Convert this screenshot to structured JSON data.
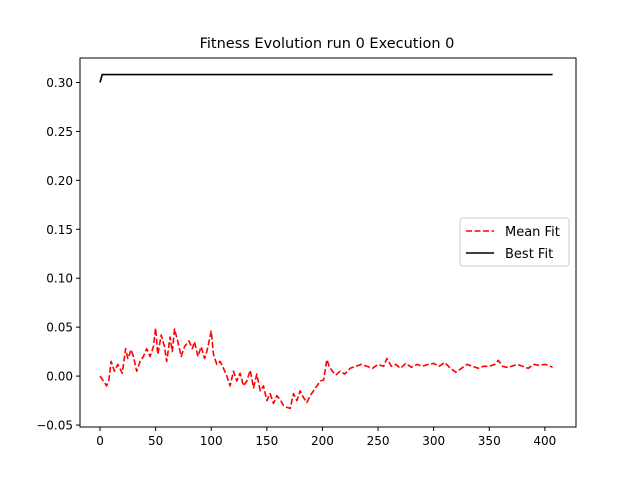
{
  "chart_data": {
    "type": "line",
    "title": "Fitness Evolution run 0 Execution 0",
    "xlabel": "",
    "ylabel": "",
    "xlim": [
      -18,
      428
    ],
    "ylim": [
      -0.052,
      0.325
    ],
    "xticks": [
      0,
      50,
      100,
      150,
      200,
      250,
      300,
      350,
      400
    ],
    "yticks": [
      -0.05,
      0.0,
      0.05,
      0.1,
      0.15,
      0.2,
      0.25,
      0.3
    ],
    "xtick_labels": [
      "0",
      "50",
      "100",
      "150",
      "200",
      "250",
      "300",
      "350",
      "400"
    ],
    "ytick_labels": [
      "−0.05",
      "0.00",
      "0.05",
      "0.10",
      "0.15",
      "0.20",
      "0.25",
      "0.30"
    ],
    "grid": false,
    "legend_position": "center-right",
    "series": [
      {
        "name": "Mean Fit",
        "color": "#ff0000",
        "style": "dashed",
        "x": [
          0,
          3,
          6,
          8,
          10,
          13,
          16,
          20,
          23,
          25,
          28,
          30,
          33,
          36,
          39,
          42,
          45,
          48,
          50,
          52,
          55,
          58,
          60,
          63,
          65,
          67,
          70,
          73,
          76,
          80,
          83,
          85,
          88,
          91,
          94,
          96,
          98,
          100,
          102,
          105,
          108,
          111,
          114,
          117,
          120,
          123,
          126,
          129,
          132,
          135,
          138,
          141,
          144,
          147,
          150,
          153,
          156,
          159,
          162,
          165,
          168,
          171,
          174,
          177,
          180,
          183,
          186,
          189,
          192,
          195,
          198,
          201,
          204,
          206,
          209,
          212,
          216,
          220,
          225,
          230,
          235,
          240,
          245,
          250,
          255,
          258,
          262,
          266,
          270,
          275,
          280,
          285,
          290,
          295,
          300,
          305,
          310,
          315,
          320,
          325,
          330,
          335,
          340,
          345,
          350,
          355,
          358,
          362,
          366,
          370,
          375,
          380,
          385,
          390,
          395,
          400,
          403,
          407
        ],
        "y": [
          0.0,
          -0.005,
          -0.01,
          -0.004,
          0.015,
          0.005,
          0.012,
          0.003,
          0.028,
          0.018,
          0.027,
          0.02,
          0.005,
          0.015,
          0.02,
          0.028,
          0.02,
          0.03,
          0.049,
          0.022,
          0.042,
          0.03,
          0.015,
          0.04,
          0.025,
          0.048,
          0.035,
          0.02,
          0.03,
          0.036,
          0.028,
          0.035,
          0.02,
          0.03,
          0.018,
          0.025,
          0.035,
          0.046,
          0.022,
          0.012,
          0.015,
          0.008,
          0.0,
          -0.01,
          0.005,
          -0.005,
          0.003,
          -0.01,
          -0.005,
          0.006,
          -0.012,
          0.002,
          -0.015,
          -0.01,
          -0.025,
          -0.018,
          -0.028,
          -0.02,
          -0.024,
          -0.03,
          -0.032,
          -0.033,
          -0.018,
          -0.025,
          -0.015,
          -0.022,
          -0.027,
          -0.02,
          -0.015,
          -0.01,
          -0.005,
          -0.004,
          0.017,
          0.01,
          0.005,
          0.001,
          0.005,
          0.002,
          0.008,
          0.01,
          0.012,
          0.01,
          0.008,
          0.012,
          0.01,
          0.018,
          0.01,
          0.012,
          0.008,
          0.013,
          0.009,
          0.012,
          0.01,
          0.012,
          0.013,
          0.01,
          0.014,
          0.008,
          0.004,
          0.008,
          0.012,
          0.01,
          0.008,
          0.01,
          0.01,
          0.012,
          0.016,
          0.01,
          0.009,
          0.01,
          0.012,
          0.01,
          0.008,
          0.012,
          0.011,
          0.012,
          0.011,
          0.009
        ]
      },
      {
        "name": "Best Fit",
        "color": "#000000",
        "style": "solid",
        "x": [
          0,
          2,
          5,
          407
        ],
        "y": [
          0.3,
          0.308,
          0.308,
          0.308
        ]
      }
    ]
  }
}
